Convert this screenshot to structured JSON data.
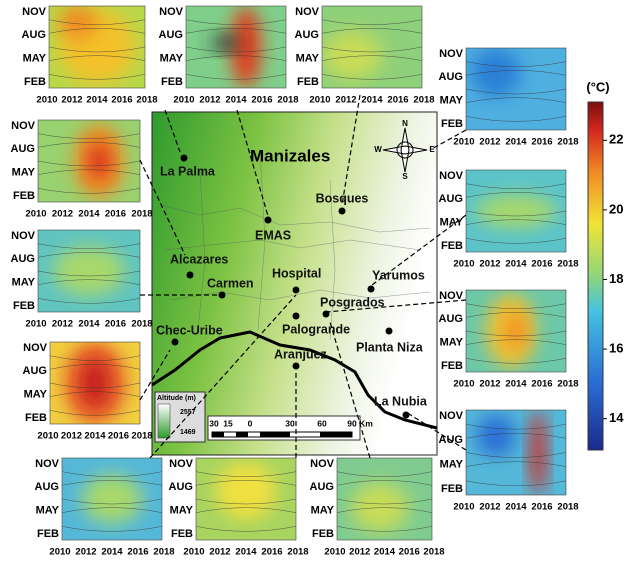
{
  "map": {
    "title": "Manizales",
    "stations": [
      "La Palma",
      "EMAS",
      "Bosques",
      "Alcazares",
      "Hospital",
      "Yarumos",
      "Carmen",
      "Posgrados",
      "Palogrande",
      "Chec-Uribe",
      "Planta Niza",
      "Aranjuez",
      "La Nubia"
    ],
    "compass": [
      "N",
      "E",
      "S",
      "W"
    ],
    "altitude_legend": {
      "title": "Altitude (m)",
      "high": 2557,
      "low": 1469
    },
    "scale_bar": [
      "30",
      "15",
      "0",
      "30",
      "60",
      "90",
      "Km"
    ]
  },
  "panel_axes": {
    "months": [
      "NOV",
      "AUG",
      "MAY",
      "FEB"
    ],
    "years": [
      2010,
      2012,
      2014,
      2016,
      2018
    ]
  },
  "colorbar": {
    "label": "(°C)",
    "lim": [
      13.1,
      23.1
    ],
    "ticks": [
      14,
      16,
      18,
      20,
      22
    ]
  }
}
